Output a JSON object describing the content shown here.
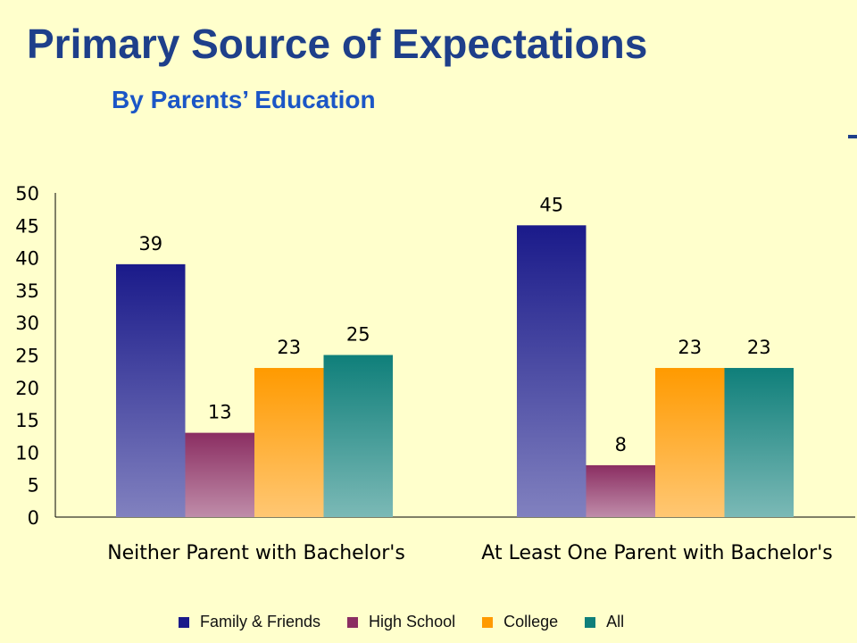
{
  "title": "Primary Source of Expectations",
  "subtitle": "By Parents’ Education",
  "chart_data": {
    "type": "bar",
    "categories": [
      "Neither Parent with Bachelor's",
      "At Least One Parent with Bachelor's"
    ],
    "series": [
      {
        "name": "Family & Friends",
        "values": [
          39,
          45
        ],
        "color": "#1a1a8a"
      },
      {
        "name": "High School",
        "values": [
          13,
          8
        ],
        "color": "#8b2e62"
      },
      {
        "name": "College",
        "values": [
          23,
          23
        ],
        "color": "#ff9a00"
      },
      {
        "name": "All",
        "values": [
          25,
          23
        ],
        "color": "#0f7f7a"
      }
    ],
    "data_labels": [
      [
        "39",
        "45"
      ],
      [
        "13",
        "8"
      ],
      [
        "23",
        "23"
      ],
      [
        "25",
        "23"
      ]
    ],
    "ylim": [
      0,
      50
    ],
    "yticks": [
      0,
      5,
      10,
      15,
      20,
      25,
      30,
      35,
      40,
      45,
      50
    ],
    "grid": false,
    "legend_position": "bottom"
  }
}
